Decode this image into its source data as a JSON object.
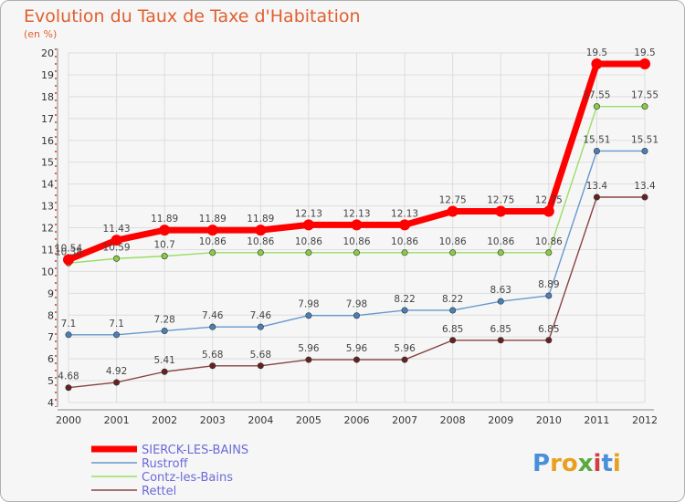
{
  "chart_data": {
    "type": "line",
    "title": "Evolution du Taux de Taxe d'Habitation",
    "subtitle": "(en %)",
    "x": [
      "2000",
      "2001",
      "2002",
      "2003",
      "2004",
      "2005",
      "2006",
      "2007",
      "2008",
      "2009",
      "2010",
      "2011",
      "2012"
    ],
    "ylim": [
      4,
      20
    ],
    "yticks": [
      "4",
      "5",
      "6",
      "7",
      "8",
      "9",
      "10",
      "11",
      "12",
      "13",
      "14",
      "15",
      "16",
      "17",
      "18",
      "19",
      "20"
    ],
    "grid": true,
    "legend_position": "bottom-left",
    "series": [
      {
        "name": "SIERCK-LES-BAINS",
        "color": "#ff0000",
        "values": [
          10.54,
          11.43,
          11.89,
          11.89,
          11.89,
          12.13,
          12.13,
          12.13,
          12.75,
          12.75,
          12.75,
          19.5,
          19.5
        ],
        "labels": [
          "10.54",
          "11.43",
          "11.89",
          "11.89",
          "11.89",
          "12.13",
          "12.13",
          "12.13",
          "12.75",
          "12.75",
          "12.75",
          "19.5",
          "19.5"
        ]
      },
      {
        "name": "Rustroff",
        "color": "#6699cc",
        "values": [
          7.1,
          7.1,
          7.28,
          7.46,
          7.46,
          7.98,
          7.98,
          8.22,
          8.22,
          8.63,
          8.89,
          15.51,
          15.51
        ],
        "labels": [
          "7.1",
          "7.1",
          "7.28",
          "7.46",
          "7.46",
          "7.98",
          "7.98",
          "8.22",
          "8.22",
          "8.63",
          "8.89",
          "15.51",
          "15.51"
        ]
      },
      {
        "name": "Contz-les-Bains",
        "color": "#99dd66",
        "values": [
          10.38,
          10.59,
          10.7,
          10.86,
          10.86,
          10.86,
          10.86,
          10.86,
          10.86,
          10.86,
          10.86,
          17.55,
          17.55
        ],
        "labels": [
          "10.38",
          "10.59",
          "10.7",
          "10.86",
          "10.86",
          "10.86",
          "10.86",
          "10.86",
          "10.86",
          "10.86",
          "10.86",
          "17.55",
          "17.55"
        ]
      },
      {
        "name": "Rettel",
        "color": "#884444",
        "values": [
          4.68,
          4.92,
          5.41,
          5.68,
          5.68,
          5.96,
          5.96,
          5.96,
          6.85,
          6.85,
          6.85,
          13.4,
          13.4
        ],
        "labels": [
          "4.68",
          "4.92",
          "5.41",
          "5.68",
          "5.68",
          "5.96",
          "5.96",
          "5.96",
          "6.85",
          "6.85",
          "6.85",
          "13.4",
          "13.4"
        ]
      }
    ]
  },
  "brand": {
    "logo_text": "Proxiti"
  }
}
